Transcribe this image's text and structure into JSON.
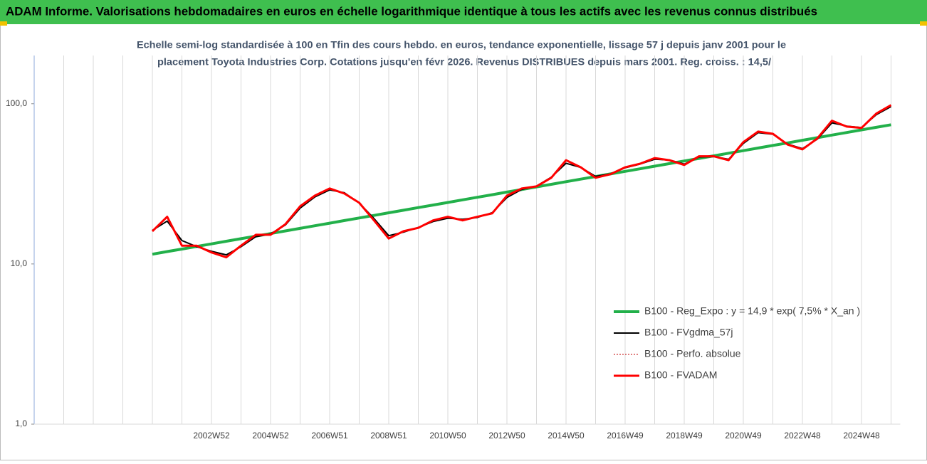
{
  "chart_data": {
    "type": "line",
    "title": "ADAM Informe. Valorisations hebdomadaires en euros en échelle logarithmique identique à tous les actifs avec les revenus connus distribués",
    "subtitle": [
      "Echelle semi-log standardisée à 100 en Tfin des cours hebdo. en euros, tendance exponentielle, lissage 57 j depuis janv 2001 pour le",
      "placement Toyota Industries Corp. Cotations jusqu'en févr 2026. Revenus DISTRIBUES depuis mars 2001. Reg. croiss. : 14,5/"
    ],
    "categories": [
      null,
      null,
      null,
      null,
      null,
      null,
      null,
      null,
      null,
      null,
      null,
      null,
      "2002W52",
      null,
      null,
      null,
      "2004W52",
      null,
      null,
      null,
      "2006W51",
      null,
      null,
      null,
      "2008W51",
      null,
      null,
      null,
      "2010W50",
      null,
      null,
      null,
      "2012W50",
      null,
      null,
      null,
      "2014W50",
      null,
      null,
      null,
      "2016W49",
      null,
      null,
      null,
      "2018W49",
      null,
      null,
      null,
      "2020W49",
      null,
      null,
      null,
      "2022W48",
      null,
      null,
      null,
      "2024W48",
      null,
      null
    ],
    "log_scale": true,
    "ylim": [
      1,
      200
    ],
    "yticks": [
      {
        "value": 1,
        "label": "1,0"
      },
      {
        "value": 10,
        "label": "10,0"
      },
      {
        "value": 100,
        "label": "100,0"
      }
    ],
    "grid": true,
    "legend": "lower right",
    "series": [
      {
        "name": "B100 - Reg_Expo : y = 14,9 * exp( 7,5% *  X_an )",
        "color": "#22b04a",
        "width": 4,
        "dash": null,
        "values": [
          null,
          null,
          null,
          null,
          null,
          null,
          null,
          null,
          11.5,
          11.94,
          12.38,
          12.86,
          13.34,
          13.85,
          14.37,
          14.92,
          15.48,
          16.07,
          16.68,
          17.31,
          17.97,
          18.65,
          19.36,
          20.09,
          20.85,
          21.65,
          22.47,
          23.32,
          24.2,
          25.12,
          26.07,
          27.06,
          28.09,
          29.15,
          30.26,
          31.41,
          32.6,
          33.83,
          35.12,
          36.45,
          37.83,
          39.27,
          40.76,
          42.3,
          43.91,
          45.57,
          47.3,
          49.1,
          50.96,
          52.89,
          54.9,
          56.98,
          59.15,
          61.39,
          63.72,
          66.14,
          68.65,
          71.25,
          73.96
        ]
      },
      {
        "name": "B100 - FVgdma_57j",
        "color": "#000000",
        "width": 2,
        "dash": null,
        "values": [
          null,
          null,
          null,
          null,
          null,
          null,
          null,
          null,
          16.2,
          18.5,
          14.0,
          12.8,
          12.0,
          11.4,
          12.8,
          14.8,
          15.4,
          17.5,
          22.3,
          26.2,
          29.0,
          27.8,
          24.0,
          19.2,
          15.0,
          15.8,
          16.9,
          18.4,
          19.3,
          19.0,
          19.5,
          20.9,
          26.0,
          29.2,
          30.6,
          34.8,
          42.5,
          40.0,
          35.2,
          36.5,
          39.8,
          42.0,
          45.0,
          44.5,
          42.0,
          46.5,
          46.8,
          45.0,
          56.5,
          66.0,
          64.5,
          56.0,
          52.5,
          60.0,
          76.0,
          72.5,
          71.0,
          85.5,
          96.0
        ]
      },
      {
        "name": "B100 - Perfo. absolue",
        "color": "#c00000",
        "width": 1,
        "dash": "2,2",
        "values": [
          null,
          null,
          null,
          null,
          null,
          null,
          null,
          null,
          16.0,
          19.7,
          13.0,
          13,
          11.8,
          11,
          13,
          15.2,
          15.2,
          17.7,
          22.9,
          26.7,
          29.6,
          27.5,
          24.1,
          18.7,
          14.4,
          16,
          16.8,
          18.7,
          19.7,
          18.7,
          19.7,
          20.7,
          26.7,
          29.6,
          30.5,
          34.5,
          44.4,
          40.1,
          34.5,
          36.3,
          40.1,
          42.2,
          45.8,
          44.4,
          41.5,
          47,
          47,
          44.4,
          57.6,
          67,
          64.9,
          55.6,
          51.9,
          60.6,
          78.4,
          72,
          70.6,
          86.8,
          98
        ]
      },
      {
        "name": "B100 - FVADAM",
        "color": "#ff0000",
        "width": 3,
        "dash": null,
        "values": [
          null,
          null,
          null,
          null,
          null,
          null,
          null,
          null,
          16.0,
          19.7,
          13.0,
          13,
          11.8,
          11,
          13,
          15.2,
          15.2,
          17.7,
          22.9,
          26.7,
          29.6,
          27.5,
          24.1,
          18.7,
          14.4,
          16,
          16.8,
          18.7,
          19.7,
          18.7,
          19.7,
          20.7,
          26.7,
          29.6,
          30.5,
          34.5,
          44.4,
          40.1,
          34.5,
          36.3,
          40.1,
          42.2,
          45.8,
          44.4,
          41.5,
          47,
          47,
          44.4,
          57.6,
          67,
          64.9,
          55.6,
          51.9,
          60.6,
          78.4,
          72,
          70.6,
          86.8,
          98
        ]
      }
    ]
  }
}
